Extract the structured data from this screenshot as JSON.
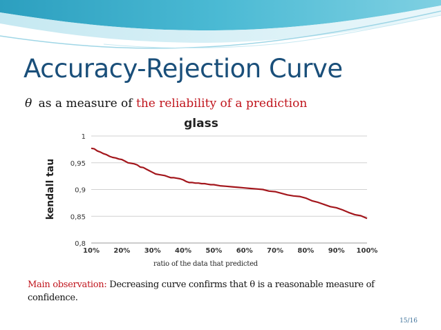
{
  "slide": {
    "title": "Accuracy-Rejection Curve",
    "subtitle_symbol": "θ",
    "subtitle_text": "as a measure of",
    "subtitle_highlight": "the reliability of a prediction",
    "observation_label": "Main observation:",
    "observation_text": "Decreasing curve confirms that θ is a reasonable measure of confidence.",
    "page_number": "15/16"
  },
  "colors": {
    "title": "#1a4f7a",
    "highlight": "#c0141c",
    "curve": "#a3161c",
    "grid": "#d0d0d0",
    "decor_teal": "#3aaec8",
    "decor_light": "#a9dceb"
  },
  "chart_data": {
    "type": "line",
    "title": "glass",
    "xlabel": "ratio of the data that predicted",
    "ylabel": "kendall tau",
    "xlim": [
      10,
      100
    ],
    "ylim": [
      0.8,
      1.0
    ],
    "x_ticks": [
      "10%",
      "20%",
      "30%",
      "40%",
      "50%",
      "60%",
      "70%",
      "80%",
      "90%",
      "100%"
    ],
    "y_ticks": [
      "1",
      "0,95",
      "0,9",
      "0,85",
      "0,8"
    ],
    "grid": true,
    "legend": "none",
    "series": [
      {
        "x": [
          10,
          11,
          12,
          13,
          14,
          15,
          16,
          17,
          18,
          19,
          20,
          21,
          22,
          23,
          24,
          25,
          26,
          27,
          28,
          29,
          30,
          31,
          32,
          33,
          34,
          35,
          36,
          37,
          38,
          39,
          40,
          41,
          42,
          43,
          44,
          45,
          46,
          47,
          48,
          49,
          50,
          52,
          54,
          56,
          58,
          60,
          62,
          64,
          66,
          68,
          70,
          72,
          74,
          76,
          78,
          80,
          82,
          84,
          86,
          88,
          90,
          92,
          94,
          96,
          98,
          100
        ],
        "values": [
          0.977,
          0.976,
          0.972,
          0.97,
          0.967,
          0.965,
          0.962,
          0.96,
          0.959,
          0.957,
          0.956,
          0.953,
          0.95,
          0.949,
          0.948,
          0.946,
          0.942,
          0.941,
          0.938,
          0.935,
          0.932,
          0.929,
          0.928,
          0.927,
          0.926,
          0.924,
          0.922,
          0.922,
          0.921,
          0.92,
          0.918,
          0.915,
          0.913,
          0.913,
          0.912,
          0.912,
          0.911,
          0.911,
          0.91,
          0.909,
          0.909,
          0.907,
          0.906,
          0.905,
          0.904,
          0.903,
          0.902,
          0.901,
          0.9,
          0.897,
          0.896,
          0.893,
          0.89,
          0.888,
          0.887,
          0.884,
          0.879,
          0.876,
          0.872,
          0.868,
          0.866,
          0.862,
          0.857,
          0.853,
          0.851,
          0.846
        ]
      }
    ]
  }
}
